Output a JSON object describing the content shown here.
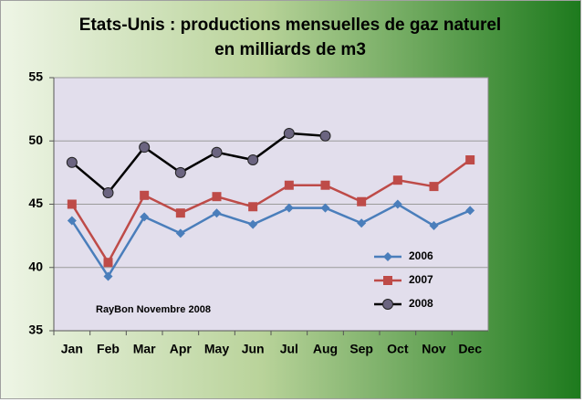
{
  "chart_data": {
    "type": "line",
    "title": [
      "Etats-Unis : productions mensuelles de gaz naturel",
      "en milliards de m3"
    ],
    "annotation": "RayBon Novembre 2008",
    "categories": [
      "Jan",
      "Feb",
      "Mar",
      "Apr",
      "May",
      "Jun",
      "Jul",
      "Aug",
      "Sep",
      "Oct",
      "Nov",
      "Dec"
    ],
    "series": [
      {
        "name": "2006",
        "color": "#4a7ebb",
        "marker": "diamond",
        "marker_color": "#4a7ebb",
        "values": [
          43.7,
          39.3,
          44.0,
          42.7,
          44.3,
          43.4,
          44.7,
          44.7,
          43.5,
          45.0,
          43.3,
          44.5
        ]
      },
      {
        "name": "2007",
        "color": "#be4b48",
        "marker": "square",
        "marker_color": "#be4b48",
        "values": [
          45.0,
          40.4,
          45.7,
          44.3,
          45.6,
          44.8,
          46.5,
          46.5,
          45.2,
          46.9,
          46.4,
          48.5
        ]
      },
      {
        "name": "2008",
        "color": "#000000",
        "marker": "circle",
        "marker_color": "#6b6480",
        "values": [
          48.3,
          45.9,
          49.5,
          47.5,
          49.1,
          48.5,
          50.6,
          50.4,
          null,
          null,
          null,
          null
        ]
      }
    ],
    "ylim": [
      35,
      55
    ],
    "yticks": [
      35,
      40,
      45,
      50,
      55
    ],
    "grid": true
  }
}
